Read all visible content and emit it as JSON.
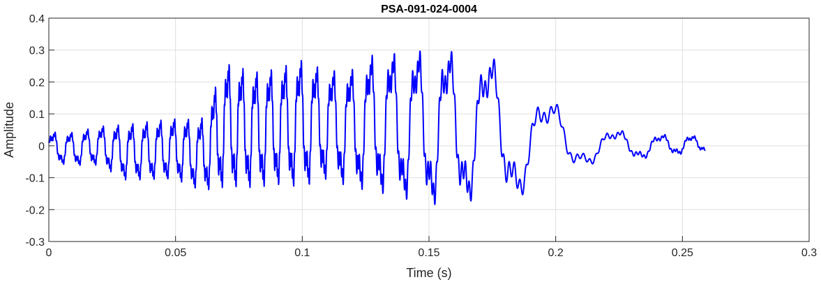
{
  "chart_data": {
    "type": "line",
    "title": "PSA-091-024-0004",
    "xlabel": "Time (s)",
    "ylabel": "Amplitude",
    "xlim": [
      0,
      0.3
    ],
    "ylim": [
      -0.3,
      0.4
    ],
    "xticks": [
      0,
      0.05,
      0.1,
      0.15,
      0.2,
      0.25,
      0.3
    ],
    "xtick_labels": [
      "0",
      "0.05",
      "0.1",
      "0.15",
      "0.2",
      "0.25",
      "0.3"
    ],
    "yticks": [
      -0.3,
      -0.2,
      -0.1,
      0,
      0.1,
      0.2,
      0.3,
      0.4
    ],
    "ytick_labels": [
      "-0.3",
      "-0.2",
      "-0.1",
      "0",
      "0.1",
      "0.2",
      "0.3",
      "0.4"
    ],
    "grid": true,
    "series": [
      {
        "color": "#0000ff",
        "x": [
          0,
          0.01,
          0.02,
          0.03,
          0.04,
          0.05,
          0.06,
          0.07,
          0.08,
          0.09,
          0.1,
          0.11,
          0.12,
          0.13,
          0.14,
          0.15,
          0.16,
          0.17,
          0.18,
          0.19,
          0.2,
          0.21,
          0.22,
          0.23,
          0.24,
          0.25,
          0.259
        ],
        "y_max": [
          0.05,
          0.05,
          0.07,
          0.08,
          0.09,
          0.1,
          0.1,
          0.29,
          0.26,
          0.27,
          0.3,
          0.26,
          0.27,
          0.33,
          0.32,
          0.34,
          0.33,
          0.31,
          0.3,
          0.19,
          0.15,
          0.08,
          0.06,
          0.05,
          0.04,
          0.04,
          0.03
        ],
        "y_min": [
          -0.06,
          -0.07,
          -0.07,
          -0.12,
          -0.12,
          -0.12,
          -0.16,
          -0.16,
          -0.16,
          -0.15,
          -0.16,
          -0.13,
          -0.16,
          -0.18,
          -0.2,
          -0.22,
          -0.22,
          -0.2,
          -0.2,
          -0.17,
          -0.12,
          -0.07,
          -0.06,
          -0.05,
          -0.04,
          -0.03,
          -0.02
        ]
      }
    ]
  }
}
